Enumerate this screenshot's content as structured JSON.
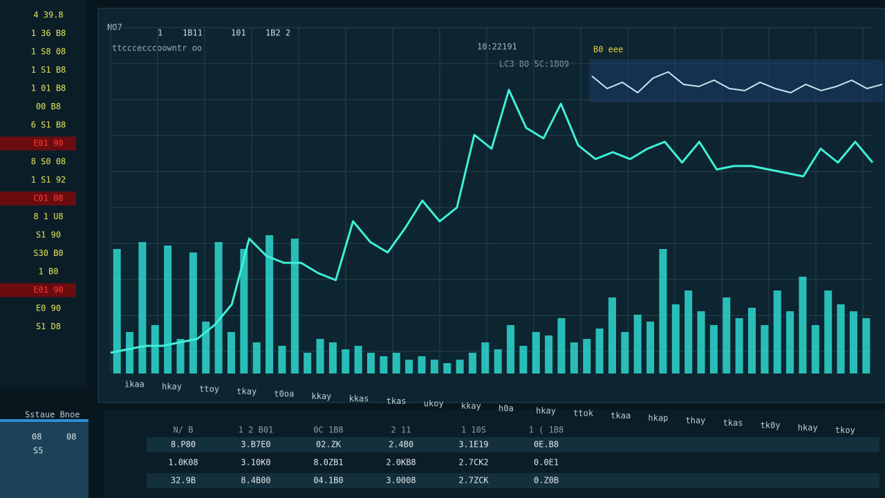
{
  "sidebar": {
    "rows": [
      {
        "text": "4 39.8",
        "alert": false
      },
      {
        "text": "1 36 B8",
        "alert": false
      },
      {
        "text": "1 S8 08",
        "alert": false
      },
      {
        "text": "1 S1 B8",
        "alert": false
      },
      {
        "text": "1 01 B8",
        "alert": false
      },
      {
        "text": "00 B8",
        "alert": false
      },
      {
        "text": "6 S1 B8",
        "alert": false
      },
      {
        "text": "E01 90",
        "alert": true
      },
      {
        "text": "8 S0 08",
        "alert": false
      },
      {
        "text": "1 S1 92",
        "alert": false
      },
      {
        "text": "C01 08",
        "alert": true
      },
      {
        "text": "8 1 U8",
        "alert": false
      },
      {
        "text": "S1 90",
        "alert": false
      },
      {
        "text": "S30 B0",
        "alert": false
      },
      {
        "text": "1 B0",
        "alert": false
      },
      {
        "text": "E01 90",
        "alert": true
      },
      {
        "text": "E0 90",
        "alert": false
      },
      {
        "text": "S1 D8",
        "alert": false
      }
    ]
  },
  "header": {
    "title": "NO7",
    "tabs": [
      "1",
      "1B11",
      "101",
      "1B2 2"
    ],
    "subtitle": "ttcccecccoowntr oo",
    "clock": "10:22191",
    "clock_sub": "LC3 B0 5C:1B09",
    "mini_title": "B0 eee"
  },
  "chart_data": {
    "type": "line",
    "ylim": [
      0,
      100
    ],
    "grid": true,
    "series": [
      {
        "name": "price",
        "color": "#3ff0d8",
        "values": [
          6,
          7,
          8,
          8,
          9,
          10,
          14,
          20,
          39,
          34,
          32,
          32,
          29,
          27,
          44,
          38,
          35,
          42,
          50,
          44,
          48,
          69,
          65,
          82,
          71,
          68,
          78,
          66,
          62,
          64,
          62,
          65,
          67,
          61,
          67,
          59,
          60,
          60,
          59,
          58,
          57,
          65,
          61,
          67,
          61
        ]
      }
    ],
    "volume": {
      "color": "#2fd8d0",
      "values": [
        36,
        12,
        38,
        14,
        37,
        10,
        35,
        15,
        38,
        12,
        36,
        9,
        40,
        8,
        39,
        6,
        10,
        9,
        7,
        8,
        6,
        5,
        6,
        4,
        5,
        4,
        3,
        4,
        6,
        9,
        7,
        14,
        8,
        12,
        11,
        16,
        9,
        10,
        13,
        22,
        12,
        17,
        15,
        36,
        20,
        24,
        18,
        14,
        22,
        16,
        19,
        14,
        24,
        18,
        28,
        14,
        24,
        20,
        18,
        16
      ]
    },
    "x_axis_labels": [
      "ikaa",
      "hkay",
      "ttoy",
      "tkay",
      "t0oa",
      "kkay",
      "kkas",
      "tkas",
      "ukoy",
      "kkay",
      "h0a",
      "hkay",
      "ttok",
      "tkaa",
      "hkap",
      "thay",
      "tkas",
      "tk0y",
      "hkay",
      "tkoy"
    ]
  },
  "mini_chart": {
    "color": "#c8e8f0",
    "values": [
      60,
      30,
      45,
      20,
      55,
      70,
      40,
      35,
      50,
      30,
      25,
      45,
      30,
      20,
      40,
      25,
      35,
      50,
      30,
      40
    ]
  },
  "table": {
    "headers": [
      "N/ B",
      "1 2 B01",
      "0C 1B8",
      "2 11",
      "1 10S",
      "1 ( 1B8"
    ],
    "rows": [
      [
        "8.P80",
        "3.B7E0",
        "02.ZK",
        "2.4B0",
        "3.1E19",
        "0E.B8"
      ],
      [
        "1.0K08",
        "3.10K0",
        "8.0ZB1",
        "2.0KB8",
        "2.7CK2",
        "0.0E1"
      ],
      [
        "32.9B",
        "8.4B00",
        "04.1B0",
        "3.0008",
        "2.7ZCK",
        "0.Z0B"
      ]
    ]
  },
  "corner_panel": {
    "title": "Sstaue Bnoe",
    "labels": [
      "08",
      "08",
      "S5"
    ]
  }
}
